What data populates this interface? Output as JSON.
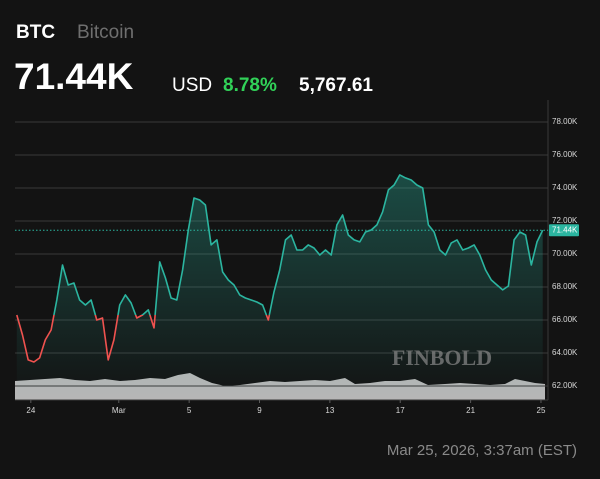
{
  "header": {
    "symbol": "BTC",
    "name": "Bitcoin",
    "price": "71.44K",
    "currency": "USD",
    "change_percent": "8.78%",
    "change_value": "5,767.61"
  },
  "chart_data": {
    "type": "line",
    "series": [
      {
        "name": "BTC",
        "color": "#2bb5a0",
        "down_color": "#f0524f",
        "x": [
          -0.8,
          -0.475,
          -0.15,
          0.175,
          0.5,
          0.825,
          1.15,
          1.475,
          1.8,
          2.125,
          2.45,
          2.775,
          3.1,
          3.425,
          3.75,
          4.075,
          4.4,
          4.725,
          5.05,
          5.375,
          5.7,
          6.025,
          6.35,
          6.675,
          7.0,
          7.325,
          7.65,
          7.975,
          8.3,
          8.625,
          8.95,
          9.275,
          9.6,
          9.925,
          10.25,
          10.575,
          10.9,
          11.225,
          11.55,
          11.875,
          12.2,
          12.525,
          12.85,
          13.175,
          13.5,
          13.825,
          14.15,
          14.475,
          14.8,
          15.125,
          15.45,
          15.775,
          16.1,
          16.425,
          16.75,
          17.075,
          17.4,
          17.725,
          18.05,
          18.375,
          18.7,
          19.025,
          19.35,
          19.675,
          20.0,
          20.325,
          20.65,
          20.975,
          21.3,
          21.625,
          21.95,
          22.275,
          22.6,
          22.925,
          23.25,
          23.575,
          23.9,
          24.225,
          24.55,
          24.875,
          25.2,
          25.525,
          25.85,
          26.175,
          26.5,
          26.825,
          27.15,
          27.475,
          27.8,
          28.125,
          28.45,
          28.775,
          29.1
        ],
        "values": [
          66300,
          65090,
          63580,
          63450,
          63700,
          64790,
          65390,
          67210,
          69330,
          68120,
          68240,
          67210,
          66910,
          67210,
          66000,
          66120,
          63580,
          64790,
          66910,
          67520,
          67030,
          66120,
          66300,
          66610,
          65520,
          69520,
          68550,
          67330,
          67210,
          69030,
          71450,
          73390,
          73270,
          72970,
          70550,
          70850,
          68910,
          68420,
          68120,
          67520,
          67330,
          67210,
          67090,
          66910,
          66000,
          67700,
          69030,
          70850,
          71150,
          70240,
          70240,
          70550,
          70360,
          69940,
          70240,
          69940,
          71760,
          72360,
          71150,
          70850,
          70730,
          71330,
          71450,
          71760,
          72550,
          73880,
          74180,
          74790,
          74610,
          74480,
          74180,
          74000,
          71760,
          71330,
          70240,
          69940,
          70670,
          70850,
          70240,
          70360,
          70550,
          69940,
          69030,
          68420,
          68120,
          67820,
          68060,
          70850,
          71330,
          71150,
          69330,
          70730,
          71440
        ]
      }
    ],
    "last_label": "71.44K",
    "xlim": [
      -0.9,
      29.4
    ],
    "xticks": [
      {
        "value": 0,
        "label": "24"
      },
      {
        "value": 5,
        "label": "Mar"
      },
      {
        "value": 9,
        "label": "5"
      },
      {
        "value": 13,
        "label": "9"
      },
      {
        "value": 17,
        "label": "13"
      },
      {
        "value": 21,
        "label": "17"
      },
      {
        "value": 25,
        "label": "21"
      },
      {
        "value": 29,
        "label": "25"
      }
    ],
    "ylim": [
      61150,
      79330
    ],
    "yticks": [
      {
        "value": 62000,
        "label": "62.00K"
      },
      {
        "value": 64000,
        "label": "64.00K"
      },
      {
        "value": 66000,
        "label": "66.00K"
      },
      {
        "value": 68000,
        "label": "68.00K"
      },
      {
        "value": 70000,
        "label": "70.00K"
      },
      {
        "value": 72000,
        "label": "72.00K"
      },
      {
        "value": 74000,
        "label": "74.00K"
      },
      {
        "value": 76000,
        "label": "76.00K"
      },
      {
        "value": 78000,
        "label": "78.00K"
      }
    ],
    "grid": true,
    "watermark": "FINBOLD"
  },
  "timestamp": "Mar 25, 2026, 3:37am (EST)"
}
